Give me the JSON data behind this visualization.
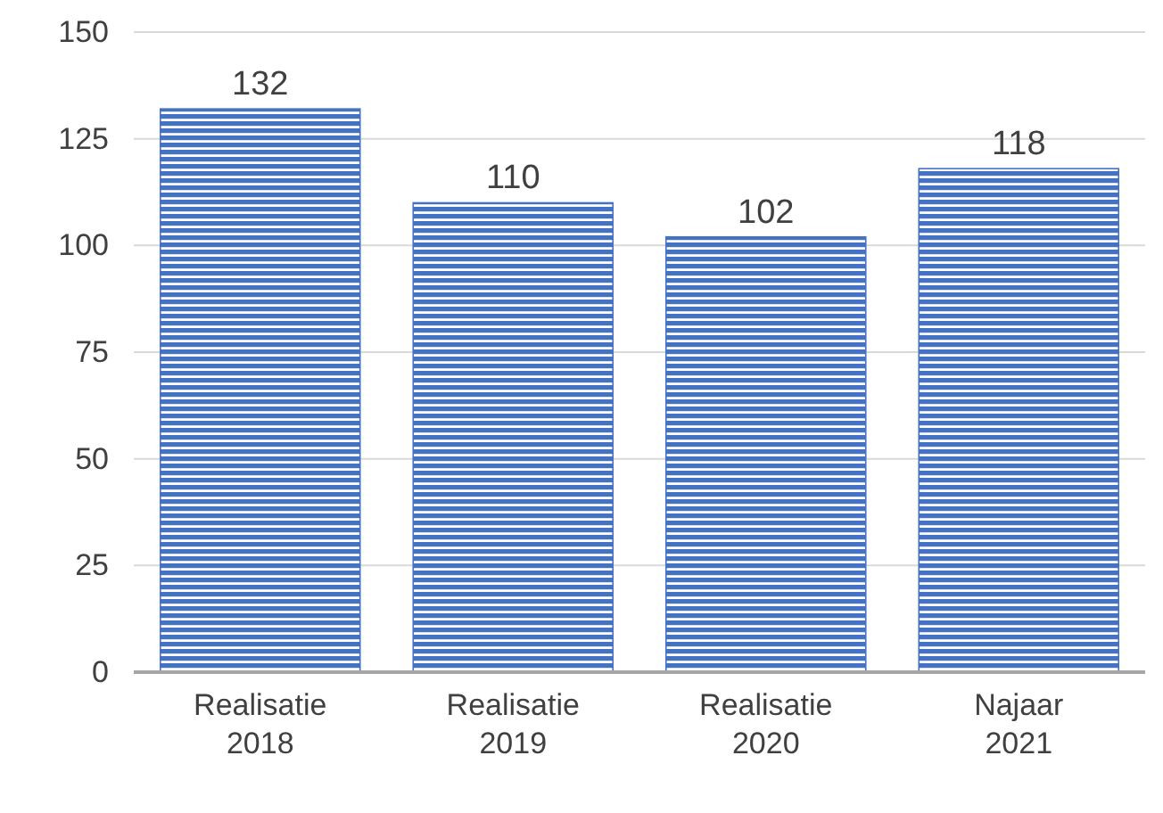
{
  "chart_data": {
    "type": "bar",
    "categories": [
      "Realisatie\n2018",
      "Realisatie\n2019",
      "Realisatie\n2020",
      "Najaar\n2021"
    ],
    "values": [
      132,
      110,
      102,
      118
    ],
    "color": "#4472c4",
    "ylim": [
      0,
      150
    ],
    "yticks": [
      0,
      25,
      50,
      75,
      100,
      125,
      150
    ],
    "grid": "y",
    "data_labels": true
  }
}
